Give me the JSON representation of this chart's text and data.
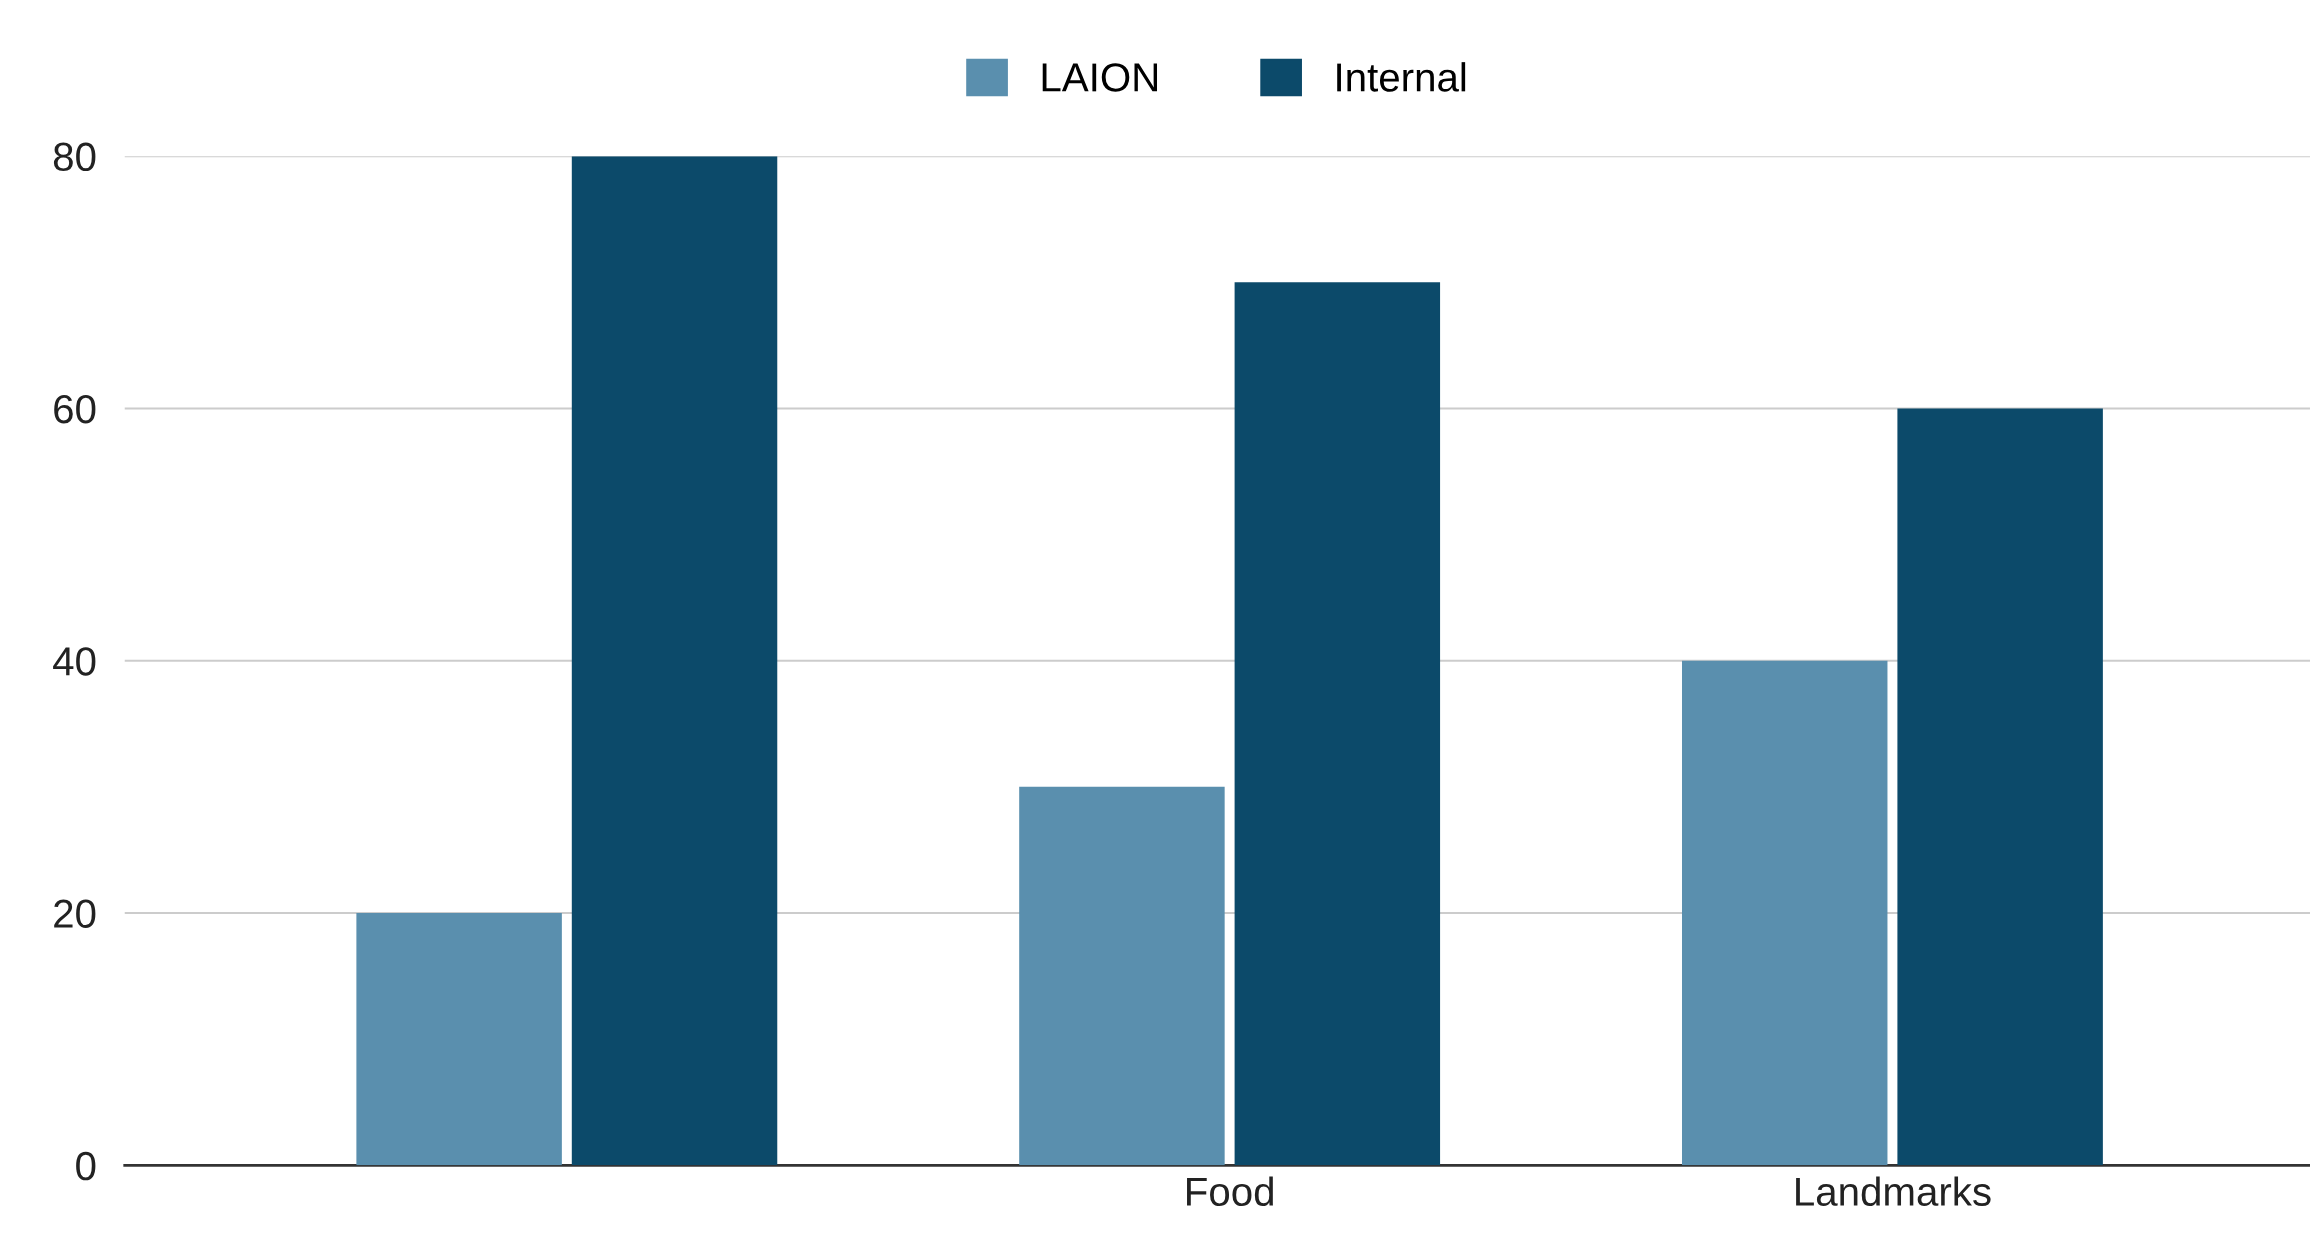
{
  "chart_data": {
    "type": "bar",
    "categories": [
      null,
      "Food",
      "Landmarks"
    ],
    "series": [
      {
        "name": "LAION",
        "color": "#5a8fae",
        "values": [
          20,
          30,
          40
        ]
      },
      {
        "name": "Internal",
        "color": "#0c4a6a",
        "values": [
          80,
          70,
          60
        ]
      }
    ],
    "ylim": [
      0,
      80
    ],
    "yticks": [
      0,
      20,
      40,
      60,
      80
    ],
    "grid": "y",
    "legend": "top"
  }
}
